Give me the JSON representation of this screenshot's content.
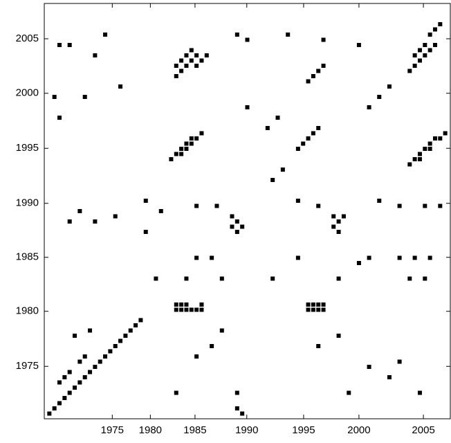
{
  "chart_data": {
    "type": "scatter",
    "xlim": [
      0,
      80
    ],
    "ylim": [
      0,
      80
    ],
    "xticks": [
      {
        "value": 13.4,
        "label": "1975"
      },
      {
        "value": 20.9,
        "label": "1980"
      },
      {
        "value": 29.7,
        "label": "1985"
      },
      {
        "value": 39.9,
        "label": "1990"
      },
      {
        "value": 51.1,
        "label": "1995"
      },
      {
        "value": 62.0,
        "label": "2000"
      },
      {
        "value": 74.7,
        "label": "2005"
      }
    ],
    "yticks": [
      {
        "value": 10.1,
        "label": "1975"
      },
      {
        "value": 20.7,
        "label": "1980"
      },
      {
        "value": 31.1,
        "label": "1985"
      },
      {
        "value": 41.5,
        "label": "1990"
      },
      {
        "value": 52.1,
        "label": "1995"
      },
      {
        "value": 62.7,
        "label": "2000"
      },
      {
        "value": 73.2,
        "label": "2005"
      }
    ],
    "grid": false,
    "series": [
      {
        "color": "#000000",
        "x": [
          1,
          2,
          3,
          4,
          5,
          6,
          7,
          8,
          9,
          10,
          11,
          12,
          13,
          14,
          15,
          16,
          17,
          18,
          19,
          3,
          4,
          5,
          7,
          8,
          26,
          27,
          28,
          29,
          30,
          26,
          27,
          28,
          31,
          31,
          52,
          53,
          54,
          55,
          52,
          53,
          54,
          55,
          26,
          27,
          28,
          29,
          30,
          27,
          28,
          29,
          26,
          30,
          31,
          32,
          72,
          73,
          74,
          75,
          76,
          77,
          73,
          74,
          75,
          76,
          77,
          78,
          25,
          26,
          27,
          28,
          29,
          27,
          28,
          29,
          30,
          31,
          72,
          73,
          74,
          75,
          76,
          77,
          74,
          76,
          78,
          79,
          37,
          38,
          39,
          38,
          37,
          57,
          58,
          59,
          57,
          58,
          50,
          51,
          52,
          53,
          54,
          52,
          53,
          54,
          55,
          3,
          5,
          2,
          3,
          10,
          12,
          8,
          15,
          40,
          38,
          48,
          55,
          62,
          64,
          66,
          68,
          40,
          44,
          46,
          62,
          64,
          70,
          73,
          76,
          50,
          30,
          33,
          22,
          28,
          35,
          45,
          58,
          72,
          75,
          6,
          9,
          30,
          33,
          35,
          54,
          58,
          64,
          68,
          70,
          26,
          60,
          74,
          38,
          38,
          39,
          20,
          23,
          30,
          34,
          50,
          54,
          66,
          70,
          75,
          78,
          45,
          47,
          5,
          7,
          10,
          14,
          20
        ],
        "y": [
          1,
          2,
          3,
          4,
          5,
          6,
          7,
          8,
          9,
          10,
          11,
          12,
          13,
          14,
          15,
          16,
          17,
          18,
          19,
          7,
          8,
          9,
          11,
          12,
          21,
          21,
          21,
          21,
          21,
          22,
          22,
          22,
          21,
          22,
          21,
          21,
          21,
          21,
          22,
          22,
          22,
          22,
          66,
          67,
          68,
          69,
          70,
          69,
          70,
          71,
          68,
          68,
          69,
          70,
          67,
          68,
          69,
          70,
          71,
          72,
          70,
          71,
          72,
          74,
          75,
          76,
          50,
          51,
          52,
          53,
          54,
          51,
          52,
          53,
          54,
          55,
          49,
          50,
          51,
          52,
          53,
          54,
          50,
          52,
          54,
          55,
          37,
          38,
          37,
          36,
          39,
          37,
          38,
          39,
          39,
          36,
          52,
          53,
          54,
          55,
          56,
          65,
          66,
          67,
          68,
          72,
          72,
          62,
          58,
          70,
          74,
          62,
          64,
          73,
          74,
          74,
          73,
          72,
          60,
          62,
          64,
          60,
          56,
          58,
          30,
          31,
          31,
          31,
          31,
          31,
          31,
          31,
          27,
          27,
          27,
          27,
          27,
          27,
          27,
          16,
          17,
          12,
          14,
          17,
          14,
          16,
          10,
          8,
          11,
          5,
          5,
          5,
          5,
          2,
          1,
          42,
          40,
          41,
          41,
          42,
          41,
          42,
          41,
          41,
          41,
          46,
          48,
          38,
          40,
          38,
          39,
          36
        ]
      }
    ]
  }
}
